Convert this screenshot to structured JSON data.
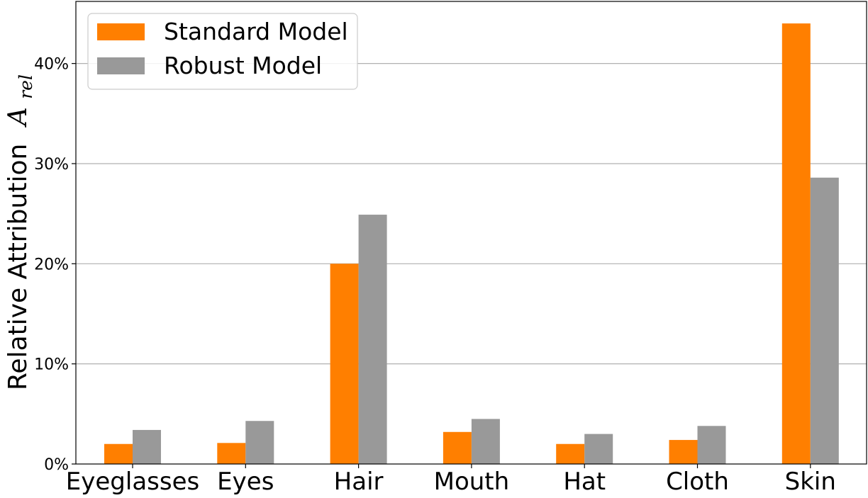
{
  "chart_data": {
    "type": "bar",
    "categories": [
      "Eyeglasses",
      "Eyes",
      "Hair",
      "Mouth",
      "Hat",
      "Cloth",
      "Skin"
    ],
    "series": [
      {
        "name": "Standard Model",
        "color": "#ff7f00",
        "values": [
          2.0,
          2.1,
          20.0,
          3.2,
          2.0,
          2.4,
          44.0
        ]
      },
      {
        "name": "Robust Model",
        "color": "#999999",
        "values": [
          3.4,
          4.3,
          24.9,
          4.5,
          3.0,
          3.8,
          28.6
        ]
      }
    ],
    "ylabel": "Relative Attribution",
    "ylabel_symbol": "A",
    "ylabel_symbol_subscript": "rel",
    "yticks": [
      0,
      10,
      20,
      30,
      40
    ],
    "ytick_labels": [
      "0%",
      "10%",
      "20%",
      "30%",
      "40%"
    ],
    "ylim": [
      0,
      46.2
    ],
    "grid": "horizontal",
    "legend_position": "upper-left",
    "gridline_color": "#b0b0b0"
  }
}
